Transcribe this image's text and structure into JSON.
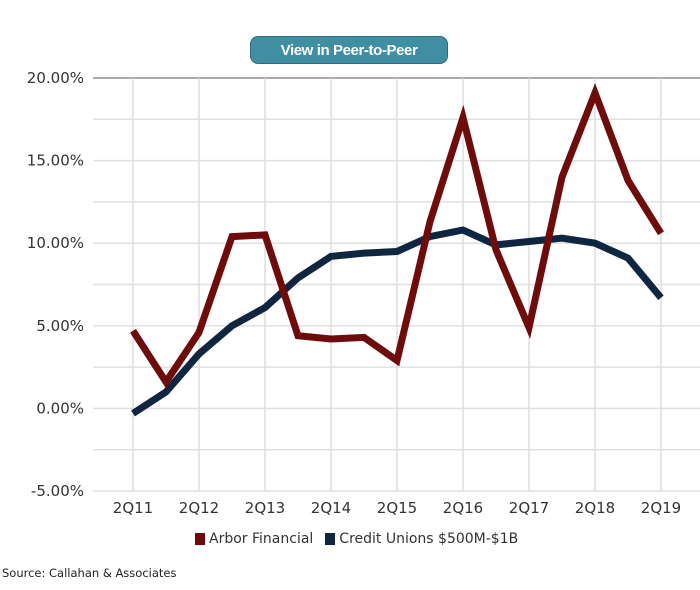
{
  "button": {
    "label": "View in Peer-to-Peer"
  },
  "source": "Source: Callahan & Associates",
  "colors": {
    "arbor": "#6e0b0b",
    "cu": "#0f2540",
    "grid": "#dddddd",
    "button": "#3f8ea2"
  },
  "chart_data": {
    "type": "line",
    "title": "",
    "xlabel": "",
    "ylabel": "",
    "ylim": [
      -5,
      20
    ],
    "y_ticks": [
      -5,
      0,
      5,
      10,
      15,
      20
    ],
    "y_tick_labels": [
      "-5.00%",
      "0.00%",
      "5.00%",
      "10.00%",
      "15.00%",
      "20.00%"
    ],
    "x_tick_labels": [
      "2Q11",
      "2Q12",
      "2Q13",
      "2Q14",
      "2Q15",
      "2Q16",
      "2Q17",
      "2Q18",
      "2Q19"
    ],
    "x": [
      "2Q11",
      "4Q11",
      "2Q12",
      "4Q12",
      "2Q13",
      "4Q13",
      "2Q14",
      "4Q14",
      "2Q15",
      "4Q15",
      "2Q16",
      "4Q16",
      "2Q17",
      "4Q17",
      "2Q18",
      "4Q18",
      "2Q19"
    ],
    "grid": true,
    "legend_position": "bottom",
    "series": [
      {
        "name": "Arbor Financial",
        "color": "#6e0b0b",
        "values": [
          4.7,
          1.6,
          4.6,
          10.4,
          10.5,
          4.4,
          4.2,
          4.3,
          2.9,
          11.3,
          17.6,
          9.6,
          4.9,
          14.0,
          19.1,
          13.8,
          10.6
        ]
      },
      {
        "name": "Credit Unions $500M-$1B",
        "color": "#0f2540",
        "values": [
          -0.3,
          1.0,
          3.3,
          5.0,
          6.1,
          7.9,
          9.2,
          9.4,
          9.5,
          10.4,
          10.8,
          9.9,
          10.1,
          10.3,
          10.0,
          9.1,
          6.7
        ]
      }
    ]
  }
}
